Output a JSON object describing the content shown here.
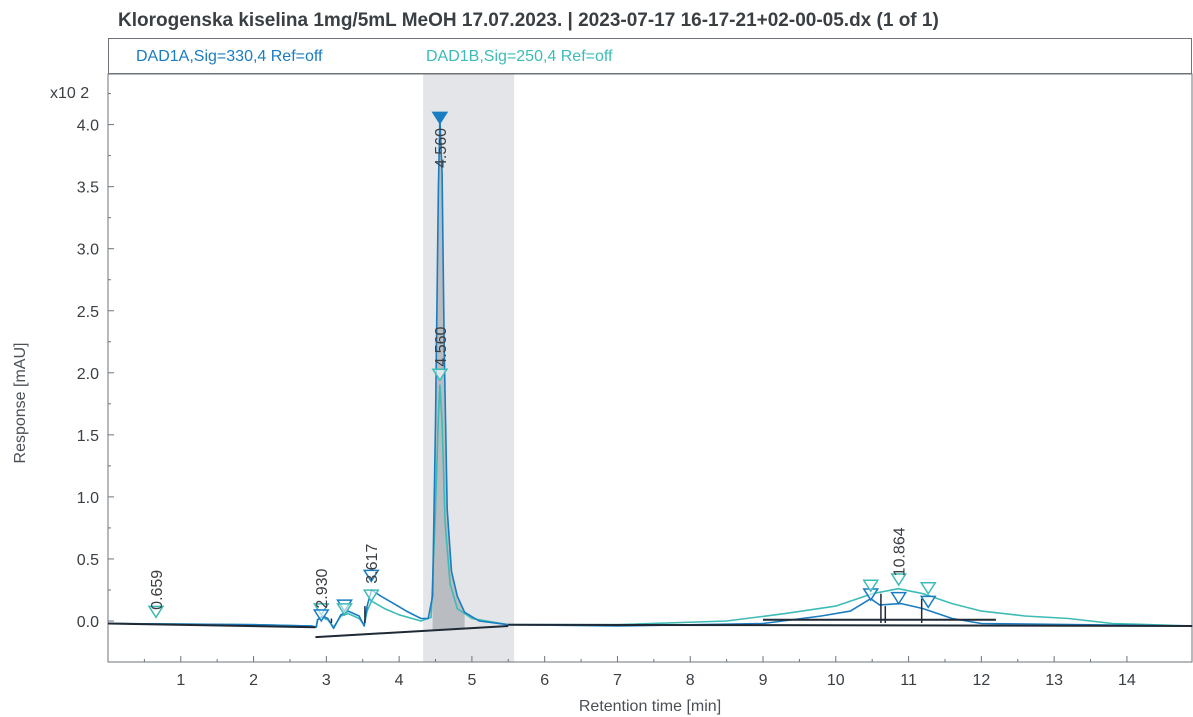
{
  "chart_data": {
    "type": "line",
    "title": "Klorogenska kiselina 1mg/5mL MeOH 17.07.2023.  | 2023-07-17 16-17-21+02-00-05.dx (1 of 1)",
    "xlabel": "Retention time [min]",
    "ylabel": "Response [mAU]",
    "y_multiplier": "x10 2",
    "xlim": [
      0,
      14.9
    ],
    "ylim": [
      -0.35,
      4.3
    ],
    "x_ticks": [
      "1",
      "2",
      "3",
      "4",
      "5",
      "6",
      "7",
      "8",
      "9",
      "10",
      "11",
      "12",
      "13",
      "14"
    ],
    "y_ticks": [
      "0.0",
      "0.5",
      "1.0",
      "1.5",
      "2.0",
      "2.5",
      "3.0",
      "3.5",
      "4.0"
    ],
    "highlight_range": [
      4.33,
      5.58
    ],
    "grid": false,
    "legend_position": "top",
    "series": [
      {
        "name": "DAD1A,Sig=330,4  Ref=off",
        "color": "#1a7cc1",
        "points": [
          [
            0,
            -0.02
          ],
          [
            2,
            -0.03
          ],
          [
            2.8,
            -0.04
          ],
          [
            2.86,
            -0.05
          ],
          [
            2.88,
            0.01
          ],
          [
            2.95,
            0.04
          ],
          [
            3.02,
            0.02
          ],
          [
            3.1,
            -0.06
          ],
          [
            3.2,
            0.05
          ],
          [
            3.3,
            0.08
          ],
          [
            3.45,
            0.04
          ],
          [
            3.52,
            -0.04
          ],
          [
            3.56,
            0.12
          ],
          [
            3.62,
            0.25
          ],
          [
            3.75,
            0.2
          ],
          [
            3.9,
            0.15
          ],
          [
            4.1,
            0.08
          ],
          [
            4.3,
            0.02
          ],
          [
            4.4,
            0.02
          ],
          [
            4.46,
            0.2
          ],
          [
            4.5,
            1.6
          ],
          [
            4.54,
            3.5
          ],
          [
            4.56,
            4.05
          ],
          [
            4.59,
            3.6
          ],
          [
            4.62,
            2.2
          ],
          [
            4.66,
            0.9
          ],
          [
            4.72,
            0.4
          ],
          [
            4.8,
            0.2
          ],
          [
            4.9,
            0.07
          ],
          [
            5.1,
            0.0
          ],
          [
            5.5,
            -0.03
          ],
          [
            7,
            -0.04
          ],
          [
            9,
            -0.02
          ],
          [
            9.8,
            0.04
          ],
          [
            10.2,
            0.08
          ],
          [
            10.48,
            0.18
          ],
          [
            10.6,
            0.13
          ],
          [
            10.9,
            0.14
          ],
          [
            11.2,
            0.1
          ],
          [
            11.6,
            0.02
          ],
          [
            12,
            -0.02
          ],
          [
            14.9,
            -0.04
          ]
        ]
      },
      {
        "name": "DAD1B,Sig=250,4  Ref=off",
        "color": "#3dbcb5",
        "points": [
          [
            0,
            -0.02
          ],
          [
            2,
            -0.03
          ],
          [
            2.8,
            -0.04
          ],
          [
            2.86,
            -0.05
          ],
          [
            2.88,
            0.01
          ],
          [
            2.93,
            0.03
          ],
          [
            3.02,
            0.01
          ],
          [
            3.1,
            -0.05
          ],
          [
            3.2,
            0.04
          ],
          [
            3.3,
            0.06
          ],
          [
            3.45,
            0.02
          ],
          [
            3.52,
            -0.03
          ],
          [
            3.56,
            0.08
          ],
          [
            3.62,
            0.16
          ],
          [
            3.8,
            0.1
          ],
          [
            4.0,
            0.05
          ],
          [
            4.3,
            0.0
          ],
          [
            4.44,
            0.03
          ],
          [
            4.5,
            0.9
          ],
          [
            4.54,
            1.65
          ],
          [
            4.56,
            1.9
          ],
          [
            4.59,
            1.6
          ],
          [
            4.63,
            0.8
          ],
          [
            4.7,
            0.3
          ],
          [
            4.8,
            0.1
          ],
          [
            5.0,
            0.02
          ],
          [
            5.5,
            -0.03
          ],
          [
            7,
            -0.03
          ],
          [
            8.5,
            0.0
          ],
          [
            9.3,
            0.06
          ],
          [
            10.0,
            0.12
          ],
          [
            10.5,
            0.22
          ],
          [
            10.86,
            0.26
          ],
          [
            11.2,
            0.22
          ],
          [
            11.6,
            0.14
          ],
          [
            12.0,
            0.08
          ],
          [
            12.6,
            0.04
          ],
          [
            13.2,
            0.02
          ],
          [
            13.8,
            -0.02
          ],
          [
            14.9,
            -0.04
          ]
        ]
      }
    ],
    "baselines": [
      [
        [
          0,
          -0.02
        ],
        [
          2.85,
          -0.05
        ]
      ],
      [
        [
          2.85,
          -0.13
        ],
        [
          5.5,
          -0.04
        ]
      ],
      [
        [
          5.5,
          -0.03
        ],
        [
          14.9,
          -0.04
        ]
      ],
      [
        [
          9.0,
          0.01
        ],
        [
          12.2,
          0.01
        ]
      ]
    ],
    "peak_labels": [
      {
        "text": "0.659",
        "x": 0.659,
        "y": 0.09
      },
      {
        "text": "2.930",
        "x": 2.93,
        "y": 0.1
      },
      {
        "text": "3.617",
        "x": 3.617,
        "y": 0.3
      },
      {
        "text": "4.560",
        "x": 4.56,
        "y": 3.65
      },
      {
        "text": "4.560",
        "x": 4.56,
        "y": 2.05
      },
      {
        "text": "10.864",
        "x": 10.864,
        "y": 0.36
      }
    ],
    "peak_markers": [
      {
        "x": 0.659,
        "y": 0.07,
        "series": 1,
        "filled": false
      },
      {
        "x": 2.93,
        "y": 0.09,
        "series": 1,
        "filled": false
      },
      {
        "x": 2.93,
        "y": 0.04,
        "series": 0,
        "filled": false
      },
      {
        "x": 3.25,
        "y": 0.12,
        "series": 0,
        "filled": false
      },
      {
        "x": 3.25,
        "y": 0.09,
        "series": 1,
        "filled": false
      },
      {
        "x": 3.617,
        "y": 0.36,
        "series": 0,
        "filled": false
      },
      {
        "x": 3.617,
        "y": 0.2,
        "series": 1,
        "filled": false
      },
      {
        "x": 4.56,
        "y": 4.05,
        "series": 0,
        "filled": true
      },
      {
        "x": 4.56,
        "y": 1.98,
        "series": 1,
        "filled": false
      },
      {
        "x": 10.48,
        "y": 0.21,
        "series": 0,
        "filled": false
      },
      {
        "x": 10.48,
        "y": 0.28,
        "series": 1,
        "filled": false
      },
      {
        "x": 10.864,
        "y": 0.33,
        "series": 1,
        "filled": false
      },
      {
        "x": 10.864,
        "y": 0.18,
        "series": 0,
        "filled": false
      },
      {
        "x": 11.27,
        "y": 0.26,
        "series": 1,
        "filled": false
      },
      {
        "x": 11.27,
        "y": 0.15,
        "series": 0,
        "filled": false
      }
    ],
    "integration_drops": [
      {
        "x": 3.07,
        "y": 0.02
      },
      {
        "x": 3.53,
        "y": 0.12
      },
      {
        "x": 10.62,
        "y": 0.22
      },
      {
        "x": 10.68,
        "y": 0.12
      },
      {
        "x": 11.18,
        "y": 0.18
      }
    ]
  }
}
